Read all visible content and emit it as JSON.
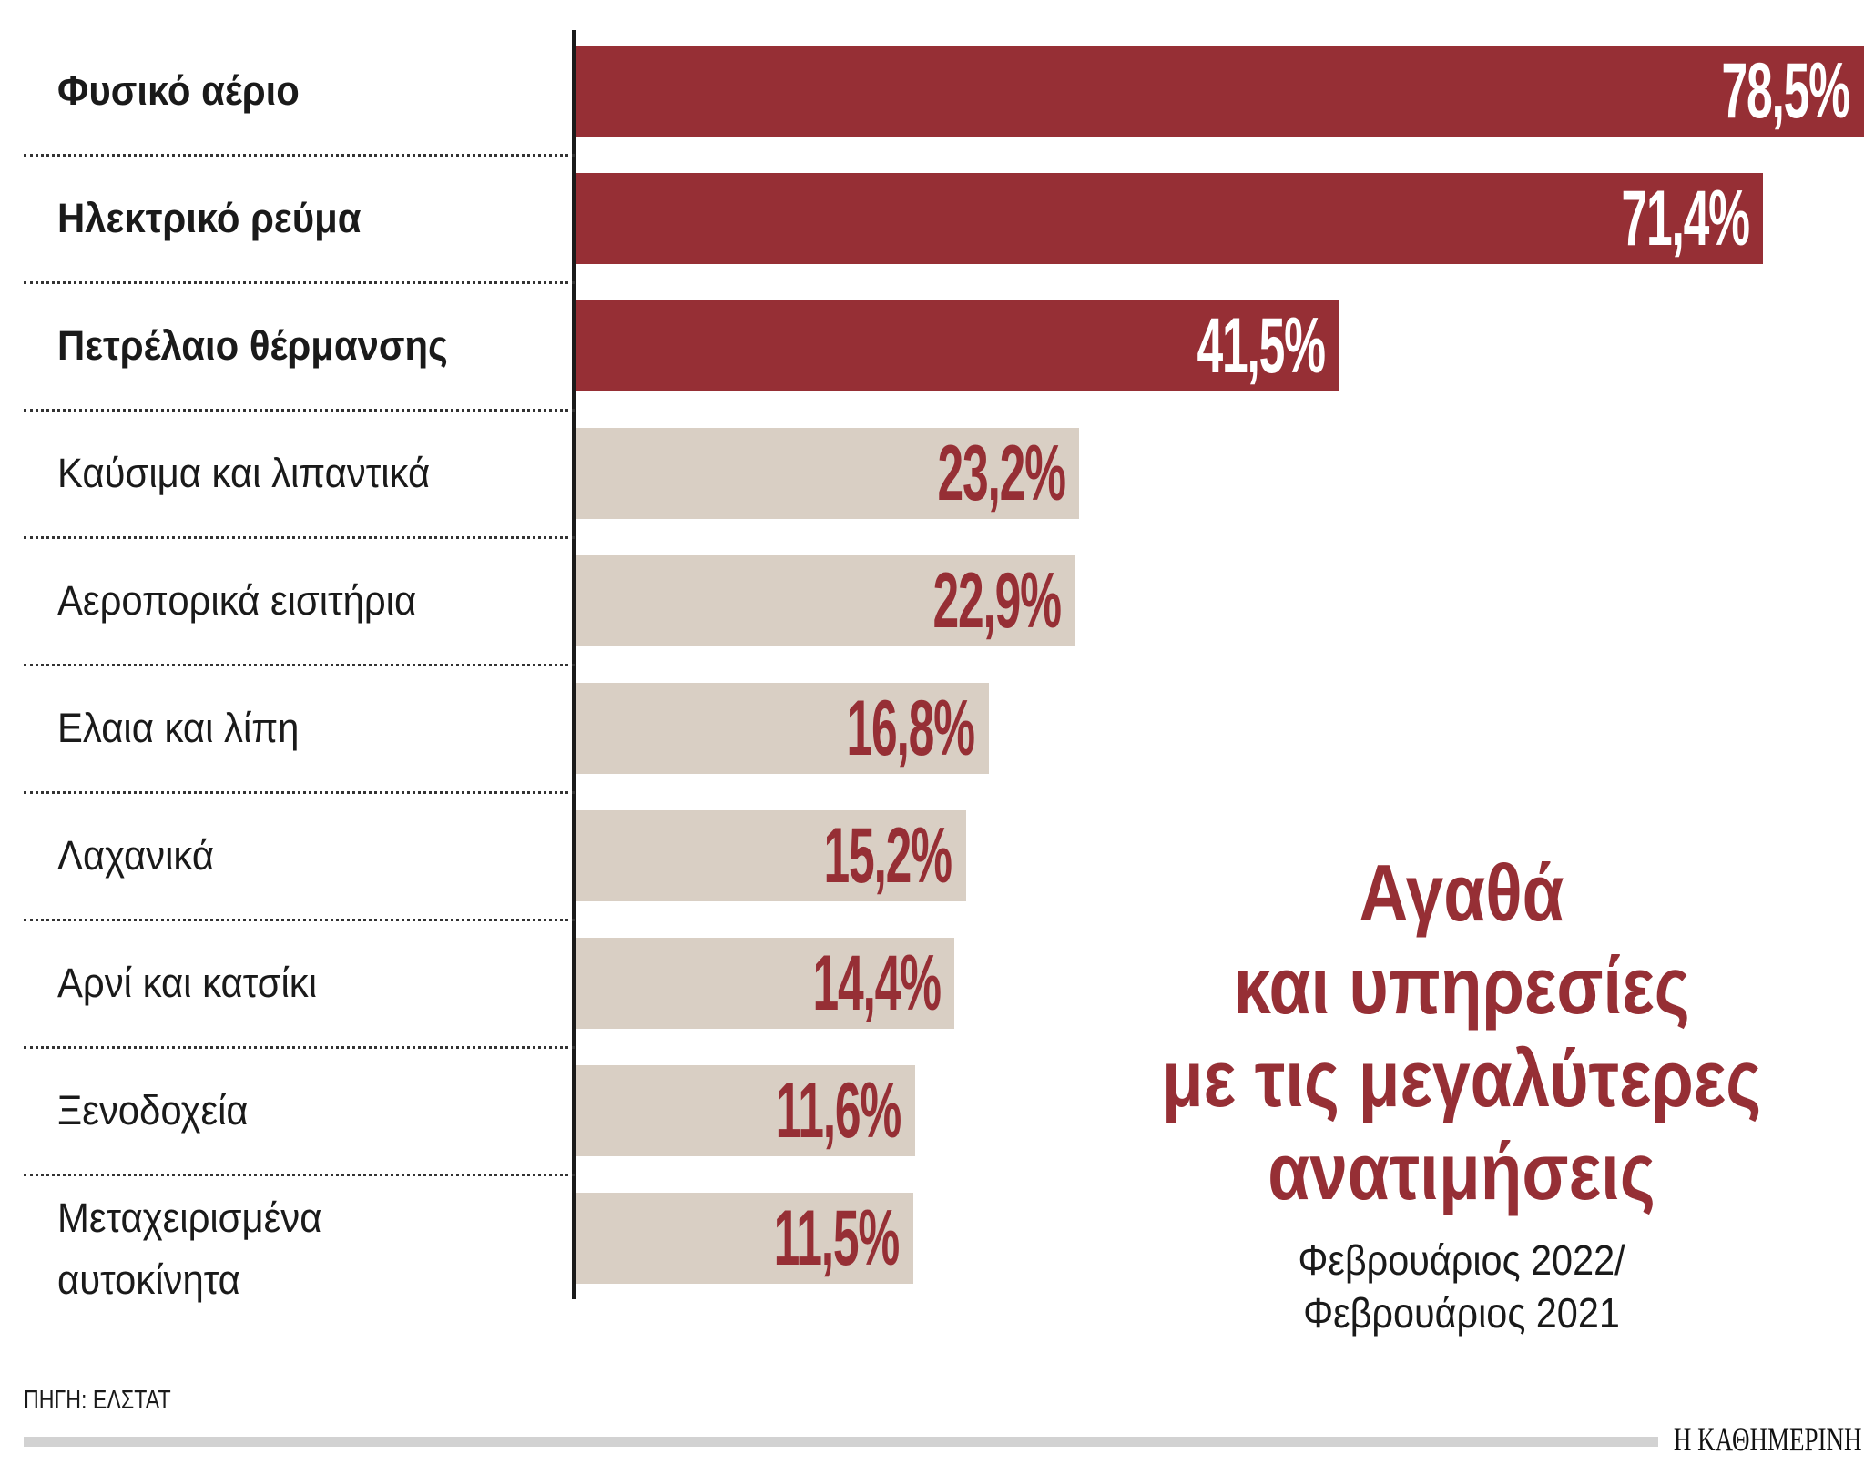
{
  "chart_data": {
    "type": "bar",
    "orientation": "horizontal",
    "title": "Αγαθά και υπηρεσίες με τις μεγαλύτερες ανατιμήσεις",
    "title_lines": [
      "Αγαθά",
      "και υπηρεσίες",
      "με τις μεγαλύτερες",
      "ανατιμήσεις"
    ],
    "subtitle_lines": [
      "Φεβρουάριος 2022/",
      "Φεβρουάριος 2021"
    ],
    "categories": [
      [
        "Φυσικό αέριο"
      ],
      [
        "Ηλεκτρικό ρεύμα"
      ],
      [
        "Πετρέλαιο θέρμανσης"
      ],
      [
        "Καύσιμα και λιπαντικά"
      ],
      [
        "Αεροπορικά εισιτήρια"
      ],
      [
        "Ελαια και λίπη"
      ],
      [
        "Λαχανικά"
      ],
      [
        "Αρνί και κατσίκι"
      ],
      [
        "Ξενοδοχεία"
      ],
      [
        "Μεταχειρισμένα",
        "αυτοκίνητα"
      ]
    ],
    "values": [
      78.5,
      71.4,
      41.5,
      23.2,
      22.9,
      16.8,
      15.2,
      14.4,
      11.6,
      11.5
    ],
    "value_labels": [
      "78,5%",
      "71,4%",
      "41,5%",
      "23,2%",
      "22,9%",
      "16,8%",
      "15,2%",
      "14,4%",
      "11,6%",
      "11,5%"
    ],
    "highlighted": [
      true,
      true,
      true,
      false,
      false,
      false,
      false,
      false,
      false,
      false
    ],
    "unit": "%",
    "grid": false,
    "colors": {
      "highlight_bar": "#962f35",
      "highlight_label": "#ffffff",
      "normal_bar": "#d9cfc4",
      "normal_label": "#962f35",
      "title": "#962f35"
    }
  },
  "source": "ΠΗΓΗ: ΕΛΣΤΑΤ",
  "logo": "Η ΚΑΘΗΜΕΡΙΝΗ"
}
